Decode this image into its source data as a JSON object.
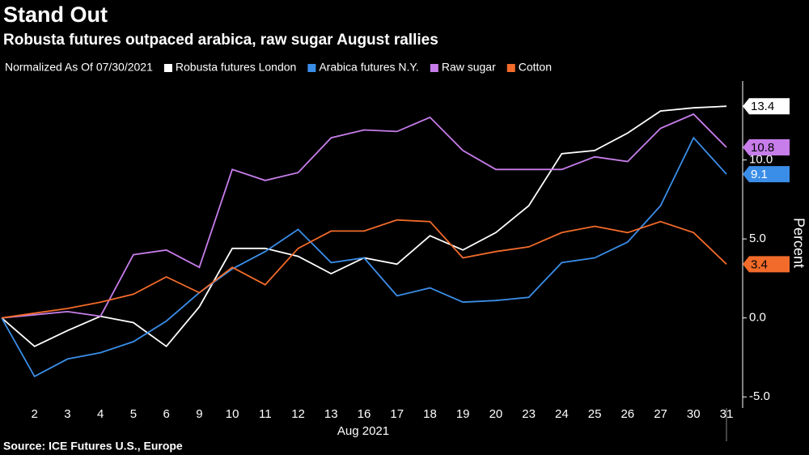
{
  "chart_data": {
    "type": "line",
    "title": "Stand Out",
    "subtitle": "Robusta futures outpaced arabica, raw sugar August rallies",
    "legend_title": "Normalized As Of 07/30/2021",
    "x_label": "Aug 2021",
    "y_label": "Percent",
    "source": "Source: ICE Futures U.S., Europe",
    "categories": [
      null,
      "2",
      "3",
      "4",
      "5",
      "6",
      "9",
      "10",
      "11",
      "12",
      "13",
      "16",
      "17",
      "18",
      "19",
      "20",
      "23",
      "24",
      "25",
      "26",
      "27",
      "30",
      "31"
    ],
    "series": [
      {
        "name": "Robusta futures London",
        "color": "#ffffff",
        "label_text_color": "#000000",
        "values": [
          0,
          -1.8,
          -0.8,
          0.1,
          -0.3,
          -1.8,
          0.7,
          4.4,
          4.4,
          3.9,
          2.8,
          3.8,
          3.4,
          5.2,
          4.3,
          5.4,
          7.1,
          10.4,
          10.6,
          11.7,
          13.1,
          13.3,
          13.4
        ]
      },
      {
        "name": "Arabica futures N.Y.",
        "color": "#3b8ee8",
        "label_text_color": "#ffffff",
        "values": [
          0,
          -3.7,
          -2.6,
          -2.2,
          -1.5,
          -0.2,
          1.6,
          3.1,
          4.2,
          5.6,
          3.5,
          3.8,
          1.4,
          1.9,
          1.0,
          1.1,
          1.3,
          3.5,
          3.8,
          4.8,
          7.1,
          11.4,
          9.1
        ]
      },
      {
        "name": "Raw sugar",
        "color": "#c77dea",
        "label_text_color": "#000000",
        "values": [
          0,
          0.2,
          0.4,
          0.1,
          4.0,
          4.3,
          3.2,
          9.4,
          8.7,
          9.2,
          11.4,
          11.9,
          11.8,
          12.7,
          10.6,
          9.4,
          9.4,
          9.4,
          10.2,
          9.9,
          12.0,
          12.9,
          10.8
        ]
      },
      {
        "name": "Cotton",
        "color": "#f26b2a",
        "label_text_color": "#000000",
        "values": [
          0,
          0.3,
          0.6,
          1.0,
          1.5,
          2.6,
          1.6,
          3.2,
          2.1,
          4.4,
          5.5,
          5.5,
          6.2,
          6.1,
          3.8,
          4.2,
          4.5,
          5.4,
          5.8,
          5.4,
          6.1,
          5.4,
          3.4
        ]
      }
    ],
    "ylim": [
      -5.5,
      15
    ],
    "yticks": [
      {
        "value": -5,
        "label": "-5.0"
      },
      {
        "value": 0,
        "label": "0.0"
      },
      {
        "value": 5,
        "label": "5.0"
      },
      {
        "value": 10,
        "label": "10.0"
      }
    ],
    "grid": false
  }
}
